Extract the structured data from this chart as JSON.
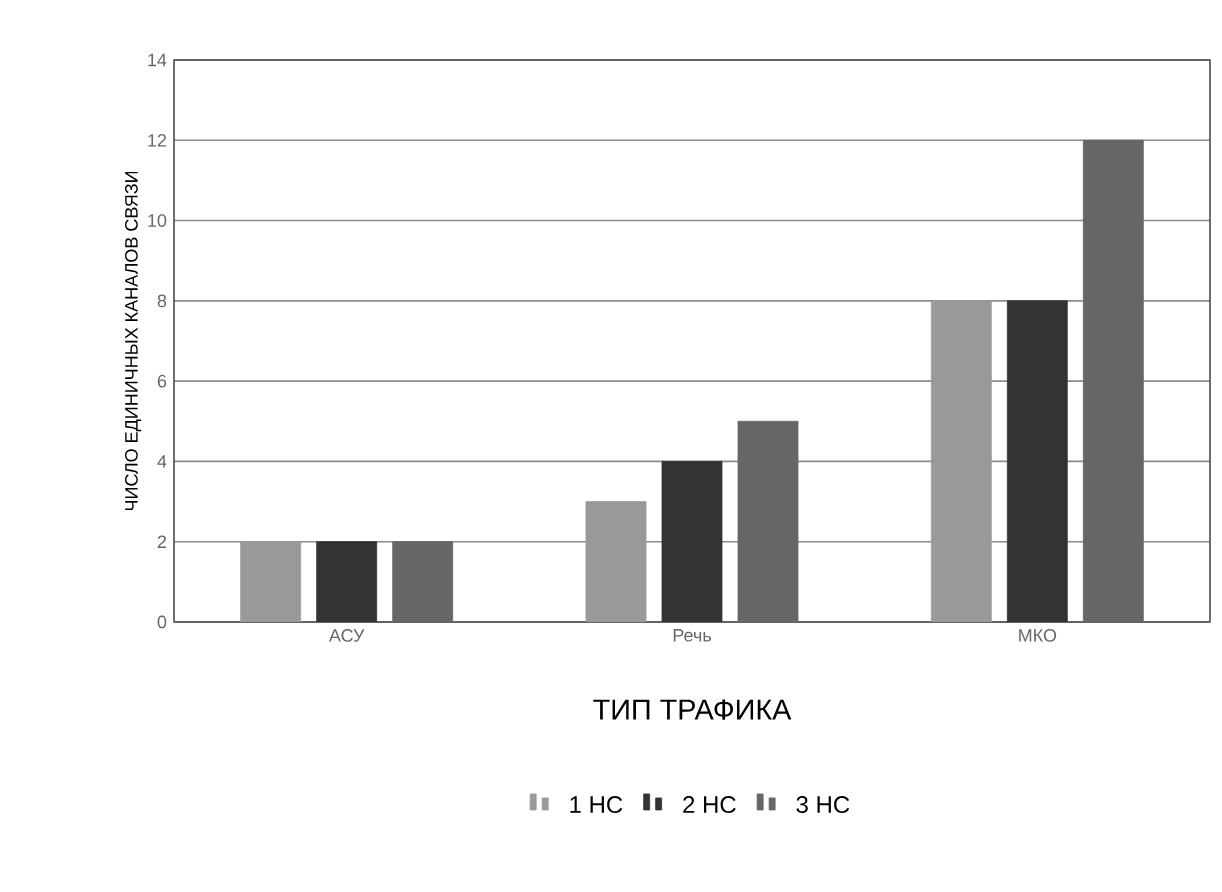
{
  "chart_data": {
    "type": "bar",
    "xlabel": "ТИП ТРАФИКА",
    "ylabel": "ЧИСЛО ЕДИНИЧНЫХ КАНАЛОВ СВЯЗИ",
    "categories": [
      "АСУ",
      "Речь",
      "МКО"
    ],
    "series": [
      {
        "name": "1 НС",
        "color": "#999999",
        "values": [
          2,
          3,
          8
        ]
      },
      {
        "name": "2 НС",
        "color": "#333333",
        "values": [
          2,
          4,
          8
        ]
      },
      {
        "name": "3 НС",
        "color": "#666666",
        "values": [
          2,
          5,
          12
        ]
      }
    ],
    "ylim": [
      0,
      14
    ],
    "yticks": [
      0,
      2,
      4,
      6,
      8,
      10,
      12,
      14
    ],
    "grid": "y",
    "legend": "bottom"
  }
}
